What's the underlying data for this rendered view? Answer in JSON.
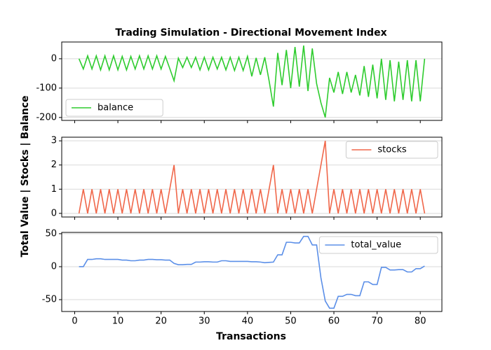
{
  "chart_data": [
    {
      "type": "line",
      "title": "Trading Simulation - Directional Movement Index",
      "x": [
        1,
        2,
        3,
        4,
        5,
        6,
        7,
        8,
        9,
        10,
        11,
        12,
        13,
        14,
        15,
        16,
        17,
        18,
        19,
        20,
        21,
        22,
        23,
        24,
        25,
        26,
        27,
        28,
        29,
        30,
        31,
        32,
        33,
        34,
        35,
        36,
        37,
        38,
        39,
        40,
        41,
        42,
        43,
        44,
        45,
        46,
        47,
        48,
        49,
        50,
        51,
        52,
        53,
        54,
        55,
        56,
        57,
        58,
        59,
        60,
        61,
        62,
        63,
        64,
        65,
        66,
        67,
        68,
        69,
        70,
        71,
        72,
        73,
        74,
        75,
        76,
        77,
        78,
        79,
        80,
        81
      ],
      "series": [
        {
          "name": "balance",
          "color": "#2ecc2e",
          "values": [
            0,
            -35,
            10,
            -35,
            10,
            -38,
            10,
            -38,
            10,
            -38,
            8,
            -38,
            8,
            -35,
            10,
            -35,
            10,
            -35,
            10,
            -35,
            8,
            -33,
            -75,
            2,
            -30,
            5,
            -30,
            5,
            -38,
            5,
            -38,
            5,
            -35,
            5,
            -38,
            5,
            -40,
            5,
            -40,
            8,
            -60,
            3,
            -55,
            5,
            -75,
            -163,
            20,
            -90,
            30,
            -100,
            40,
            -95,
            45,
            -110,
            35,
            -85,
            -150,
            -200,
            -65,
            -115,
            -45,
            -120,
            -45,
            -115,
            -55,
            -125,
            -25,
            -130,
            -20,
            -135,
            0,
            -140,
            -5,
            -145,
            -10,
            -140,
            -5,
            -145,
            -5,
            -145,
            0
          ]
        }
      ],
      "xlim": [
        -3,
        85
      ],
      "xticks": [
        0,
        10,
        20,
        30,
        40,
        50,
        60,
        70,
        80
      ],
      "ylim": [
        -210,
        57
      ],
      "yticks": [
        -200,
        -100,
        0
      ],
      "grid": true,
      "legend": "lower left"
    },
    {
      "type": "line",
      "ylabel": "Total Value | Stocks | Balance",
      "x": [
        1,
        2,
        3,
        4,
        5,
        6,
        7,
        8,
        9,
        10,
        11,
        12,
        13,
        14,
        15,
        16,
        17,
        18,
        19,
        20,
        21,
        22,
        23,
        24,
        25,
        26,
        27,
        28,
        29,
        30,
        31,
        32,
        33,
        34,
        35,
        36,
        37,
        38,
        39,
        40,
        41,
        42,
        43,
        44,
        45,
        46,
        47,
        48,
        49,
        50,
        51,
        52,
        53,
        54,
        55,
        56,
        57,
        58,
        59,
        60,
        61,
        62,
        63,
        64,
        65,
        66,
        67,
        68,
        69,
        70,
        71,
        72,
        73,
        74,
        75,
        76,
        77,
        78,
        79,
        80,
        81
      ],
      "series": [
        {
          "name": "stocks",
          "color": "#f0674a",
          "values": [
            0,
            1,
            0,
            1,
            0,
            1,
            0,
            1,
            0,
            1,
            0,
            1,
            0,
            1,
            0,
            1,
            0,
            1,
            0,
            1,
            0,
            1,
            2,
            0,
            1,
            0,
            1,
            0,
            1,
            0,
            1,
            0,
            1,
            0,
            1,
            0,
            1,
            0,
            1,
            0,
            1,
            0,
            1,
            0,
            1,
            2,
            0,
            1,
            0,
            1,
            0,
            1,
            0,
            1,
            0,
            1,
            2,
            3,
            0,
            1,
            0,
            1,
            0,
            1,
            0,
            1,
            0,
            1,
            0,
            1,
            0,
            1,
            0,
            1,
            0,
            1,
            0,
            1,
            0,
            1,
            0
          ]
        }
      ],
      "xlim": [
        -3,
        85
      ],
      "xticks": [
        0,
        10,
        20,
        30,
        40,
        50,
        60,
        70,
        80
      ],
      "ylim": [
        -0.15,
        3.15
      ],
      "yticks": [
        0,
        1,
        2,
        3
      ],
      "grid": true,
      "legend": "upper right"
    },
    {
      "type": "line",
      "xlabel": "Transactions",
      "x": [
        1,
        2,
        3,
        4,
        5,
        6,
        7,
        8,
        9,
        10,
        11,
        12,
        13,
        14,
        15,
        16,
        17,
        18,
        19,
        20,
        21,
        22,
        23,
        24,
        25,
        26,
        27,
        28,
        29,
        30,
        31,
        32,
        33,
        34,
        35,
        36,
        37,
        38,
        39,
        40,
        41,
        42,
        43,
        44,
        45,
        46,
        47,
        48,
        49,
        50,
        51,
        52,
        53,
        54,
        55,
        56,
        57,
        58,
        59,
        60,
        61,
        62,
        63,
        64,
        65,
        66,
        67,
        68,
        69,
        70,
        71,
        72,
        73,
        74,
        75,
        76,
        77,
        78,
        79,
        80,
        81
      ],
      "series": [
        {
          "name": "total_value",
          "color": "#5b8fe8",
          "values": [
            0,
            0,
            11,
            11,
            12,
            12,
            11,
            11,
            11,
            11,
            10,
            10,
            9,
            9,
            10,
            10,
            11,
            11,
            10.5,
            10.5,
            10,
            10,
            5,
            3,
            3,
            3.5,
            3.5,
            7,
            7,
            7.5,
            7.5,
            7,
            7,
            9,
            9,
            8,
            8,
            8,
            8,
            8,
            7.5,
            7.5,
            7,
            6,
            6.5,
            7,
            18,
            18,
            37,
            37,
            36,
            36,
            46,
            46,
            33,
            33,
            -17,
            -52,
            -63,
            -63,
            -45,
            -45,
            -42,
            -42,
            -44,
            -44,
            -23,
            -23,
            -27,
            -27,
            -1,
            -1,
            -5,
            -5,
            -4.5,
            -4.5,
            -8,
            -8,
            -3,
            -3,
            1
          ]
        }
      ],
      "xlim": [
        -3,
        85
      ],
      "xticks": [
        0,
        10,
        20,
        30,
        40,
        50,
        60,
        70,
        80
      ],
      "ylim": [
        -68,
        52
      ],
      "yticks": [
        -50,
        0,
        50
      ],
      "grid": true,
      "legend": "upper right"
    }
  ]
}
